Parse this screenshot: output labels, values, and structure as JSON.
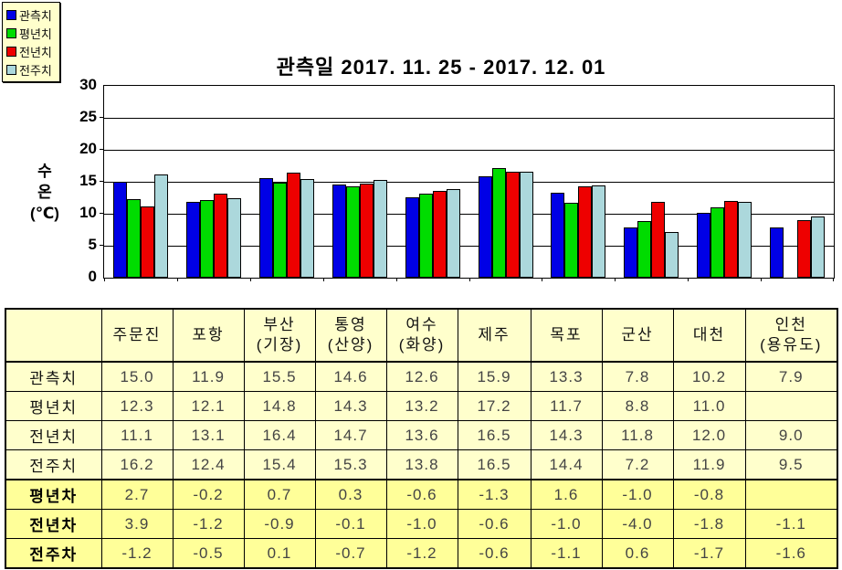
{
  "chart_data": {
    "type": "bar",
    "title": "관측일 2017. 11. 25 - 2017. 12. 01",
    "ylabel_lines": [
      "수",
      "온",
      "(℃)"
    ],
    "ylim": [
      0,
      30
    ],
    "yticks": [
      0,
      5,
      10,
      15,
      20,
      25,
      30
    ],
    "grid": true,
    "legend_position": "top-left",
    "categories": [
      "주문진",
      "포항",
      "부산(기장)",
      "통영(산양)",
      "여수(화양)",
      "제주",
      "목포",
      "군산",
      "대천",
      "인천(용유도)"
    ],
    "series": [
      {
        "name": "관측치",
        "color": "#0000E6",
        "values": [
          15.0,
          11.9,
          15.5,
          14.6,
          12.6,
          15.9,
          13.3,
          7.8,
          10.2,
          7.9
        ]
      },
      {
        "name": "평년치",
        "color": "#00DC00",
        "values": [
          12.3,
          12.1,
          14.8,
          14.3,
          13.2,
          17.2,
          11.7,
          8.8,
          11.0,
          null
        ]
      },
      {
        "name": "전년치",
        "color": "#EE0000",
        "values": [
          11.1,
          13.1,
          16.4,
          14.7,
          13.6,
          16.5,
          14.3,
          11.8,
          12.0,
          9.0
        ]
      },
      {
        "name": "전주치",
        "color": "#ACD8DC",
        "values": [
          16.2,
          12.4,
          15.4,
          15.3,
          13.8,
          16.5,
          14.4,
          7.2,
          11.9,
          9.5
        ]
      }
    ]
  },
  "table": {
    "corner_label": "",
    "headers": [
      "주문진",
      "포항",
      "부산\n(기장)",
      "통영\n(산양)",
      "여수\n(화양)",
      "제주",
      "목포",
      "군산",
      "대천",
      "인천\n(용유도)"
    ],
    "rows": [
      {
        "label": "관측치",
        "highlight": false,
        "values": [
          "15.0",
          "11.9",
          "15.5",
          "14.6",
          "12.6",
          "15.9",
          "13.3",
          "7.8",
          "10.2",
          "7.9"
        ]
      },
      {
        "label": "평년치",
        "highlight": false,
        "values": [
          "12.3",
          "12.1",
          "14.8",
          "14.3",
          "13.2",
          "17.2",
          "11.7",
          "8.8",
          "11.0",
          ""
        ]
      },
      {
        "label": "전년치",
        "highlight": false,
        "values": [
          "11.1",
          "13.1",
          "16.4",
          "14.7",
          "13.6",
          "16.5",
          "14.3",
          "11.8",
          "12.0",
          "9.0"
        ]
      },
      {
        "label": "전주치",
        "highlight": false,
        "values": [
          "16.2",
          "12.4",
          "15.4",
          "15.3",
          "13.8",
          "16.5",
          "14.4",
          "7.2",
          "11.9",
          "9.5"
        ]
      },
      {
        "label": "평년차",
        "highlight": true,
        "values": [
          "2.7",
          "-0.2",
          "0.7",
          "0.3",
          "-0.6",
          "-1.3",
          "1.6",
          "-1.0",
          "-0.8",
          ""
        ]
      },
      {
        "label": "전년차",
        "highlight": true,
        "values": [
          "3.9",
          "-1.2",
          "-0.9",
          "-0.1",
          "-1.0",
          "-0.6",
          "-1.0",
          "-4.0",
          "-1.8",
          "-1.1"
        ]
      },
      {
        "label": "전주차",
        "highlight": true,
        "values": [
          "-1.2",
          "-0.5",
          "0.1",
          "-0.7",
          "-1.2",
          "-0.6",
          "-1.1",
          "0.6",
          "-1.7",
          "-1.6"
        ]
      }
    ]
  }
}
